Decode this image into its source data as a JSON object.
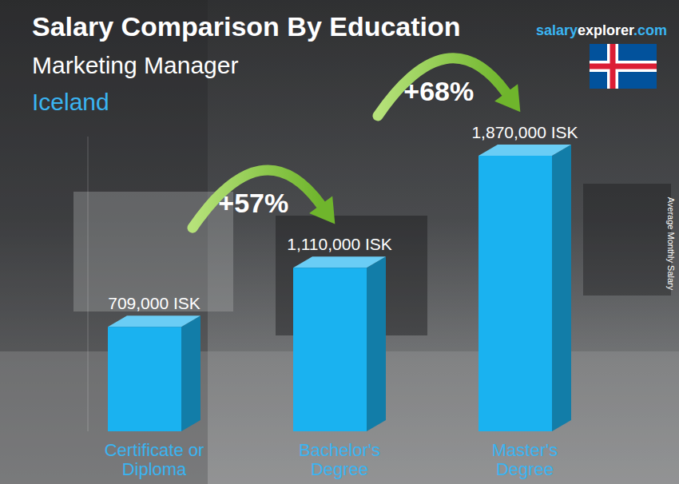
{
  "chart_data": {
    "type": "bar",
    "title": "Salary Comparison By Education",
    "subtitle": "Marketing Manager",
    "country": "Iceland",
    "source": [
      "salary",
      "explorer",
      ".com"
    ],
    "ylabel": "Average Monthly Salary",
    "categories": [
      "Certificate or Diploma",
      "Bachelor's Degree",
      "Master's Degree"
    ],
    "values": [
      709000,
      1110000,
      1870000
    ],
    "value_labels": [
      "709,000 ISK",
      "1,110,000 ISK",
      "1,870,000 ISK"
    ],
    "annotations": [
      "+57%",
      "+68%"
    ],
    "color": "#1ab2f0",
    "ylim": [
      0,
      2000000
    ],
    "data_labels": true,
    "tick_labels": false,
    "grid": false
  }
}
